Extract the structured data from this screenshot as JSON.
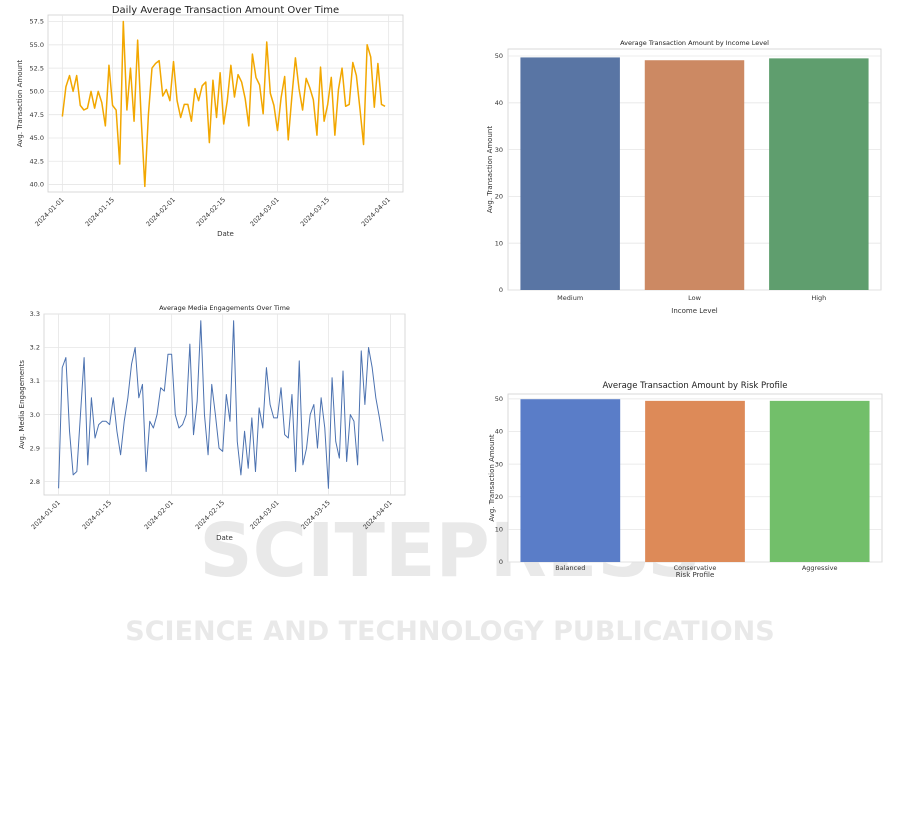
{
  "watermark": {
    "big": "SCITEPRESS",
    "small": "SCIENCE AND TECHNOLOGY PUBLICATIONS"
  },
  "chart_data": [
    {
      "type": "line",
      "title": "Daily Average Transaction Amount Over Time",
      "xlabel": "Date",
      "ylabel": "Avg. Transaction Amount",
      "color": "#f2a700",
      "x_start": "2024-01-01",
      "x_ticks": [
        "2024-01-01",
        "2024-01-15",
        "2024-02-01",
        "2024-02-15",
        "2024-03-01",
        "2024-03-15",
        "2024-04-01"
      ],
      "x_tick_days": [
        0,
        14,
        31,
        45,
        60,
        74,
        91
      ],
      "y_ticks": [
        40.0,
        42.5,
        45.0,
        47.5,
        50.0,
        52.5,
        55.0,
        57.5
      ],
      "ylim": [
        39.2,
        58.2
      ],
      "values": [
        47.3,
        50.5,
        51.7,
        50.0,
        51.7,
        48.5,
        48.0,
        48.2,
        50.0,
        48.2,
        50.0,
        48.8,
        46.3,
        52.8,
        48.5,
        48.0,
        42.2,
        57.5,
        48.0,
        52.5,
        46.8,
        55.5,
        47.0,
        39.8,
        47.5,
        52.5,
        53.0,
        53.3,
        49.5,
        50.2,
        49.0,
        53.2,
        49.0,
        47.2,
        48.6,
        48.6,
        46.8,
        50.3,
        49.0,
        50.6,
        51.0,
        44.5,
        51.2,
        47.2,
        52.0,
        46.5,
        49.0,
        52.8,
        49.4,
        51.8,
        51.0,
        49.2,
        46.3,
        54.0,
        51.5,
        50.7,
        47.6,
        55.3,
        49.8,
        48.5,
        45.8,
        49.3,
        51.6,
        44.8,
        49.4,
        53.6,
        50.3,
        48.0,
        51.4,
        50.4,
        49.1,
        45.3,
        52.6,
        46.8,
        48.6,
        51.5,
        45.3,
        50.2,
        52.5,
        48.4,
        48.6,
        53.1,
        51.7,
        48.1,
        44.3,
        55.0,
        53.7,
        48.3,
        53.0,
        48.6,
        48.4
      ]
    },
    {
      "type": "line",
      "title": "Average Media Engagements Over Time",
      "xlabel": "Date",
      "ylabel": "Avg. Media Engagements",
      "color": "#4c72b0",
      "x_start": "2024-01-01",
      "x_ticks": [
        "2024-01-01",
        "2024-01-15",
        "2024-02-01",
        "2024-02-15",
        "2024-03-01",
        "2024-03-15",
        "2024-04-01"
      ],
      "x_tick_days": [
        0,
        14,
        31,
        45,
        60,
        74,
        91
      ],
      "y_ticks": [
        2.8,
        2.9,
        3.0,
        3.1,
        3.2,
        3.3
      ],
      "ylim": [
        2.76,
        3.3
      ],
      "values": [
        2.78,
        3.14,
        3.17,
        2.95,
        2.82,
        2.83,
        3.0,
        3.17,
        2.85,
        3.05,
        2.93,
        2.97,
        2.98,
        2.98,
        2.97,
        3.05,
        2.95,
        2.88,
        2.98,
        3.05,
        3.15,
        3.2,
        3.05,
        3.09,
        2.83,
        2.98,
        2.96,
        3.0,
        3.08,
        3.07,
        3.18,
        3.18,
        3.0,
        2.96,
        2.97,
        3.0,
        3.21,
        2.94,
        3.04,
        3.28,
        3.0,
        2.88,
        3.09,
        3.0,
        2.9,
        2.89,
        3.06,
        2.98,
        3.28,
        2.92,
        2.82,
        2.95,
        2.84,
        2.99,
        2.83,
        3.02,
        2.96,
        3.14,
        3.03,
        2.99,
        2.99,
        3.08,
        2.94,
        2.93,
        3.06,
        2.83,
        3.16,
        2.85,
        2.9,
        3.0,
        3.03,
        2.9,
        3.05,
        2.96,
        2.78,
        3.11,
        2.92,
        2.87,
        3.13,
        2.86,
        3.0,
        2.98,
        2.85,
        3.19,
        3.03,
        3.2,
        3.14,
        3.05,
        2.99,
        2.92
      ]
    },
    {
      "type": "bar",
      "title": "Average Transaction Amount by Income Level",
      "xlabel": "Income Level",
      "ylabel": "Avg. Transaction Amount",
      "categories": [
        "Medium",
        "Low",
        "High"
      ],
      "values": [
        49.7,
        49.1,
        49.5
      ],
      "colors": [
        "#5975a4",
        "#cc8963",
        "#5f9e6e"
      ],
      "y_ticks": [
        0,
        10,
        20,
        30,
        40,
        50
      ],
      "ylim": [
        0,
        51.5
      ]
    },
    {
      "type": "bar",
      "title": "Average Transaction Amount by Risk Profile",
      "xlabel": "Risk Profile",
      "ylabel": "Avg. Transaction Amount",
      "categories": [
        "Balanced",
        "Conservative",
        "Aggressive"
      ],
      "values": [
        49.9,
        49.4,
        49.4
      ],
      "colors": [
        "#5a7dc8",
        "#dd8a58",
        "#72bf6a"
      ],
      "y_ticks": [
        0,
        10,
        20,
        30,
        40,
        50
      ],
      "ylim": [
        0,
        51.5
      ]
    }
  ]
}
